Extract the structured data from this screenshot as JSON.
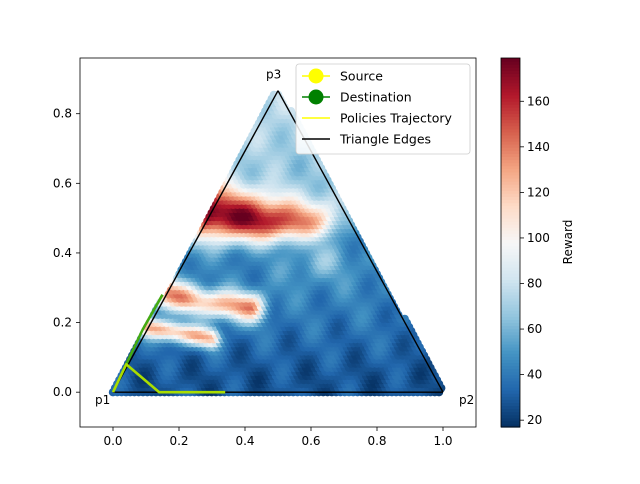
{
  "chart_data": {
    "type": "heatmap",
    "subtype": "ternary-simplex-reward-map",
    "xlim": [
      -0.1,
      1.1
    ],
    "ylim": [
      -0.1,
      0.96
    ],
    "x_ticks": [
      0.0,
      0.2,
      0.4,
      0.6,
      0.8,
      1.0
    ],
    "y_ticks": [
      0.0,
      0.2,
      0.4,
      0.6,
      0.8
    ],
    "x_tick_labels": [
      "0.0",
      "0.2",
      "0.4",
      "0.6",
      "0.8",
      "1.0"
    ],
    "y_tick_labels": [
      "0.0",
      "0.2",
      "0.4",
      "0.6",
      "0.8"
    ],
    "vertices": [
      {
        "label": "p1",
        "x": 0.0,
        "y": 0.0
      },
      {
        "label": "p2",
        "x": 1.0,
        "y": 0.0
      },
      {
        "label": "p3",
        "x": 0.5,
        "y": 0.866
      }
    ],
    "reward_features": [
      {
        "kind": "red-ridge",
        "from": [
          0.15,
          0.55
        ],
        "to": [
          0.62,
          0.46
        ],
        "peak": 178,
        "width": 0.055
      },
      {
        "kind": "red-ridge",
        "from": [
          0.08,
          0.3
        ],
        "to": [
          0.42,
          0.25
        ],
        "peak": 140,
        "width": 0.03
      },
      {
        "kind": "red-ridge",
        "from": [
          0.06,
          0.2
        ],
        "to": [
          0.3,
          0.16
        ],
        "peak": 125,
        "width": 0.02
      },
      {
        "kind": "blue-band",
        "from": [
          0.3,
          0.35
        ],
        "to": [
          0.75,
          0.45
        ],
        "level": 40,
        "width": 0.05
      }
    ],
    "base_reward": {
      "bottom": 28,
      "top": 80
    },
    "trajectories": [
      {
        "color": "#44aa11",
        "points": [
          [
            0.04,
            0.08
          ],
          [
            0.09,
            0.18
          ],
          [
            0.15,
            0.28
          ]
        ]
      },
      {
        "color": "#aadd00",
        "points": [
          [
            0.0,
            0.0
          ],
          [
            0.04,
            0.08
          ],
          [
            0.14,
            0.0
          ],
          [
            0.34,
            0.0
          ]
        ]
      }
    ],
    "colorbar": {
      "label": "Reward",
      "min": 17,
      "max": 179,
      "ticks": [
        20,
        40,
        60,
        80,
        100,
        120,
        140,
        160
      ],
      "tick_labels": [
        "20",
        "40",
        "60",
        "80",
        "100",
        "120",
        "140",
        "160"
      ],
      "colormap": "RdBu_r"
    },
    "legend": {
      "placement": "top-right",
      "entries": [
        {
          "label": "Source",
          "marker": "circle",
          "color": "#ffff00"
        },
        {
          "label": "Destination",
          "marker": "circle",
          "color": "#008000"
        },
        {
          "label": "Policies Trajectory",
          "marker": "line",
          "color": "#ffff00"
        },
        {
          "label": "Triangle Edges",
          "marker": "line",
          "color": "#000000"
        }
      ]
    }
  }
}
